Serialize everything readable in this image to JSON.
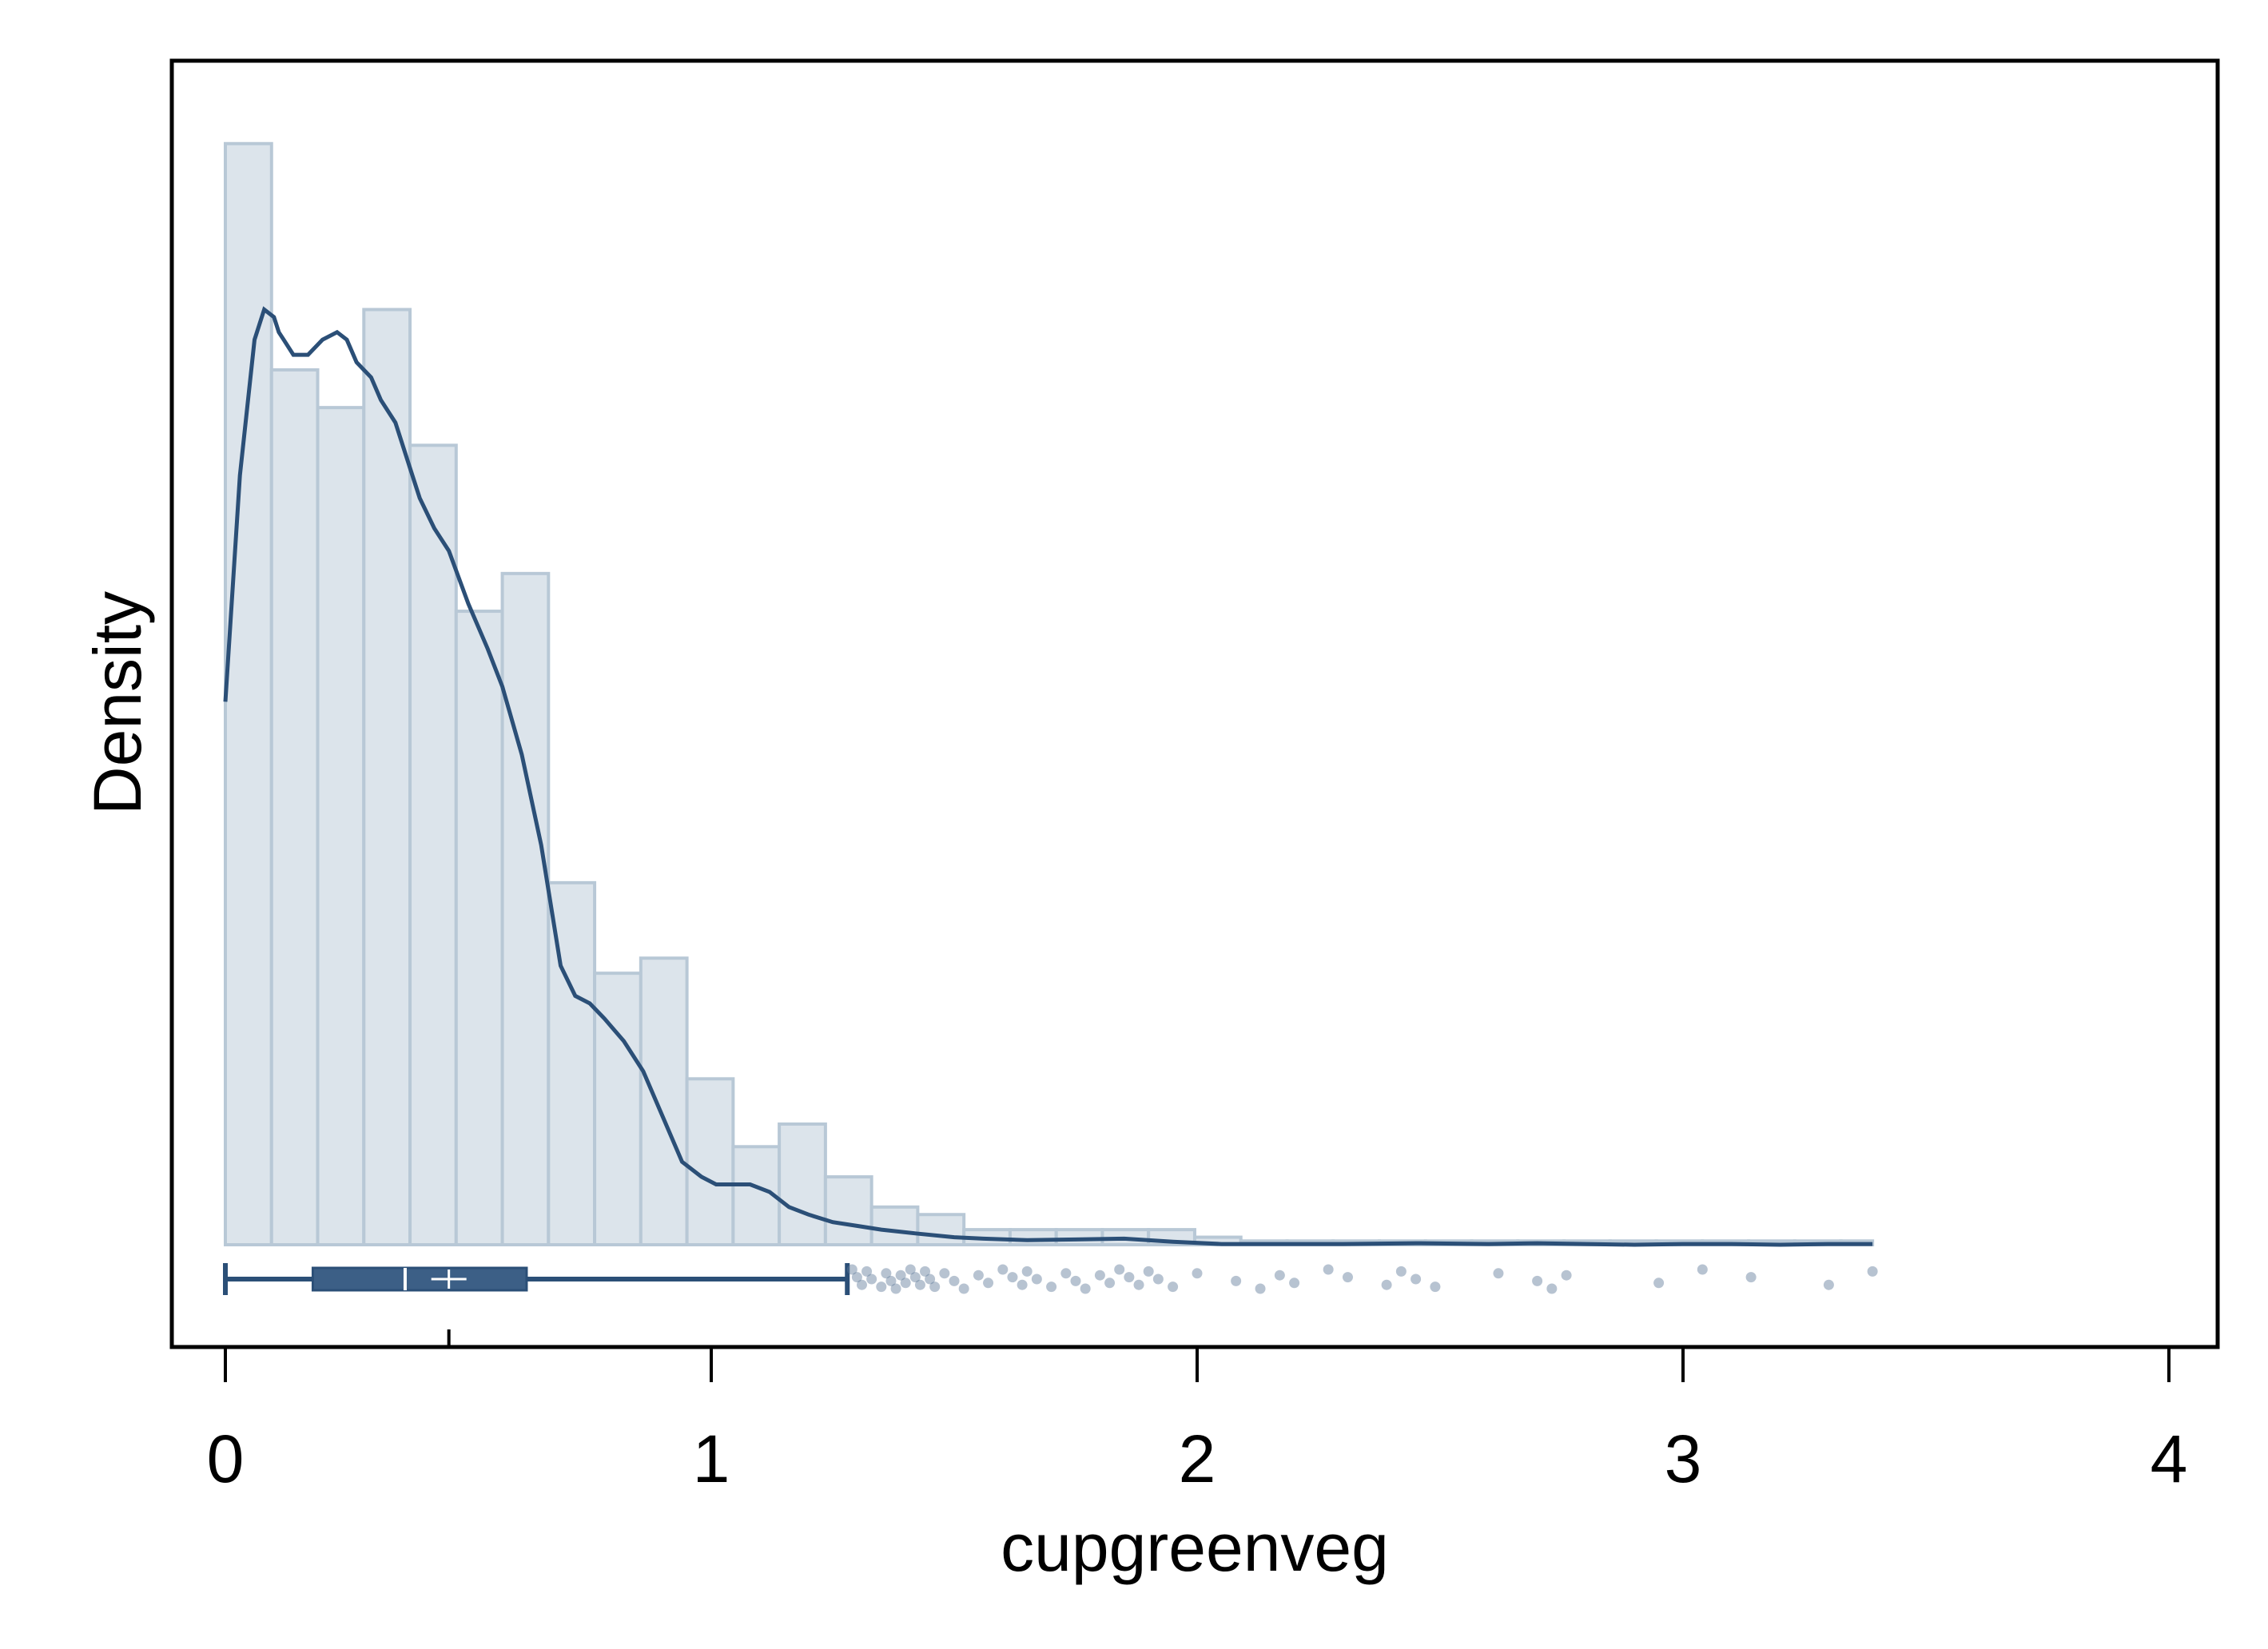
{
  "chart_data": {
    "type": "histogram",
    "xlabel": "cupgreenveg",
    "ylabel": "Density",
    "xlim": [
      0,
      4
    ],
    "x_ticks": [
      0,
      1,
      2,
      3,
      4
    ],
    "y_ticks_shown": false,
    "grid": false,
    "legend": "none",
    "histogram": {
      "bin_width": 0.095,
      "bins": [
        {
          "x0": 0.0,
          "x1": 0.095,
          "density": 1.46
        },
        {
          "x0": 0.095,
          "x1": 0.19,
          "density": 1.16
        },
        {
          "x0": 0.19,
          "x1": 0.285,
          "density": 1.11
        },
        {
          "x0": 0.285,
          "x1": 0.38,
          "density": 1.24
        },
        {
          "x0": 0.38,
          "x1": 0.475,
          "density": 1.06
        },
        {
          "x0": 0.475,
          "x1": 0.57,
          "density": 0.84
        },
        {
          "x0": 0.57,
          "x1": 0.665,
          "density": 0.89
        },
        {
          "x0": 0.665,
          "x1": 0.76,
          "density": 0.48
        },
        {
          "x0": 0.76,
          "x1": 0.855,
          "density": 0.36
        },
        {
          "x0": 0.855,
          "x1": 0.95,
          "density": 0.38
        },
        {
          "x0": 0.95,
          "x1": 1.045,
          "density": 0.22
        },
        {
          "x0": 1.045,
          "x1": 1.14,
          "density": 0.13
        },
        {
          "x0": 1.14,
          "x1": 1.235,
          "density": 0.16
        },
        {
          "x0": 1.235,
          "x1": 1.33,
          "density": 0.09
        },
        {
          "x0": 1.33,
          "x1": 1.425,
          "density": 0.05
        },
        {
          "x0": 1.425,
          "x1": 1.52,
          "density": 0.04
        },
        {
          "x0": 1.52,
          "x1": 1.615,
          "density": 0.02
        },
        {
          "x0": 1.615,
          "x1": 1.71,
          "density": 0.02
        },
        {
          "x0": 1.71,
          "x1": 1.805,
          "density": 0.02
        },
        {
          "x0": 1.805,
          "x1": 1.9,
          "density": 0.02
        },
        {
          "x0": 1.9,
          "x1": 1.995,
          "density": 0.02
        },
        {
          "x0": 1.995,
          "x1": 2.09,
          "density": 0.01
        },
        {
          "x0": 2.09,
          "x1": 2.185,
          "density": 0.005
        },
        {
          "x0": 2.185,
          "x1": 2.28,
          "density": 0.005
        },
        {
          "x0": 2.28,
          "x1": 2.375,
          "density": 0.005
        },
        {
          "x0": 2.375,
          "x1": 2.47,
          "density": 0.005
        },
        {
          "x0": 2.47,
          "x1": 2.565,
          "density": 0.005
        },
        {
          "x0": 2.565,
          "x1": 2.66,
          "density": 0.005
        },
        {
          "x0": 2.66,
          "x1": 2.755,
          "density": 0.005
        },
        {
          "x0": 2.755,
          "x1": 2.85,
          "density": 0.005
        },
        {
          "x0": 2.85,
          "x1": 2.945,
          "density": 0.005
        },
        {
          "x0": 2.945,
          "x1": 3.04,
          "density": 0.005
        },
        {
          "x0": 3.04,
          "x1": 3.135,
          "density": 0.005
        },
        {
          "x0": 3.135,
          "x1": 3.23,
          "density": 0.005
        },
        {
          "x0": 3.23,
          "x1": 3.325,
          "density": 0.005
        },
        {
          "x0": 3.325,
          "x1": 3.39,
          "density": 0.005
        }
      ]
    },
    "kde": {
      "x": [
        0.0,
        0.03,
        0.06,
        0.08,
        0.1,
        0.11,
        0.12,
        0.14,
        0.17,
        0.2,
        0.23,
        0.25,
        0.27,
        0.3,
        0.32,
        0.35,
        0.38,
        0.4,
        0.43,
        0.46,
        0.5,
        0.54,
        0.57,
        0.61,
        0.65,
        0.69,
        0.72,
        0.75,
        0.78,
        0.82,
        0.86,
        0.9,
        0.94,
        0.98,
        1.01,
        1.04,
        1.08,
        1.12,
        1.16,
        1.2,
        1.25,
        1.3,
        1.35,
        1.42,
        1.5,
        1.56,
        1.65,
        1.75,
        1.85,
        1.95,
        2.05,
        2.15,
        2.3,
        2.45,
        2.6,
        2.7,
        2.8,
        2.9,
        3.0,
        3.1,
        3.2,
        3.3,
        3.39
      ],
      "density": [
        0.72,
        1.02,
        1.2,
        1.24,
        1.23,
        1.21,
        1.2,
        1.18,
        1.18,
        1.2,
        1.21,
        1.2,
        1.17,
        1.15,
        1.12,
        1.09,
        1.03,
        0.99,
        0.95,
        0.92,
        0.85,
        0.79,
        0.74,
        0.65,
        0.53,
        0.37,
        0.33,
        0.32,
        0.3,
        0.27,
        0.23,
        0.17,
        0.11,
        0.09,
        0.08,
        0.08,
        0.08,
        0.07,
        0.05,
        0.04,
        0.03,
        0.025,
        0.02,
        0.015,
        0.01,
        0.008,
        0.006,
        0.007,
        0.008,
        0.004,
        0.001,
        0.001,
        0.001,
        0.002,
        0.001,
        0.002,
        0.001,
        0.0,
        0.001,
        0.001,
        0.0,
        0.001,
        0.001
      ]
    },
    "ylim": [
      0,
      1.5
    ],
    "boxplot": {
      "whisker_low": 0.0,
      "q1": 0.18,
      "median": 0.37,
      "mean": 0.46,
      "q3": 0.62,
      "whisker_high": 1.28
    },
    "outliers": [
      1.29,
      1.3,
      1.31,
      1.32,
      1.33,
      1.35,
      1.36,
      1.37,
      1.38,
      1.39,
      1.4,
      1.41,
      1.42,
      1.43,
      1.44,
      1.45,
      1.46,
      1.48,
      1.5,
      1.52,
      1.55,
      1.57,
      1.6,
      1.62,
      1.64,
      1.65,
      1.67,
      1.7,
      1.73,
      1.75,
      1.77,
      1.8,
      1.82,
      1.84,
      1.86,
      1.88,
      1.9,
      1.92,
      1.95,
      2.0,
      2.08,
      2.13,
      2.17,
      2.2,
      2.27,
      2.31,
      2.39,
      2.42,
      2.45,
      2.49,
      2.62,
      2.7,
      2.73,
      2.76,
      2.95,
      3.04,
      3.14,
      3.3,
      3.39
    ],
    "colors": {
      "bar_fill": "#dce4eb",
      "bar_edge": "#b8c8d6",
      "line": "#2b4f77",
      "box_fill": "#3c5f86",
      "outlier": "#5f7a98"
    }
  }
}
